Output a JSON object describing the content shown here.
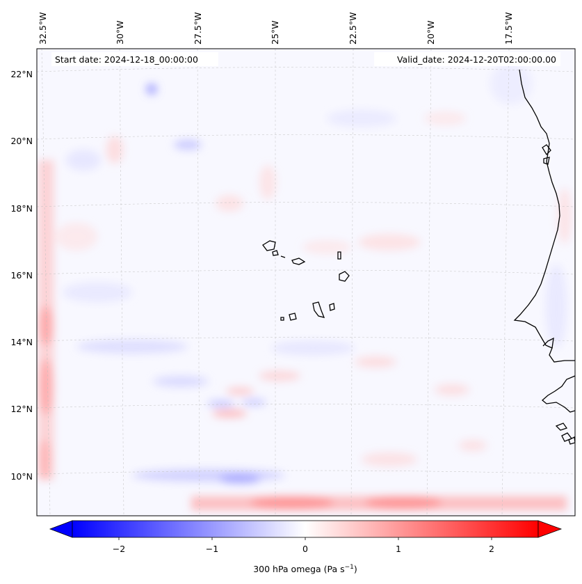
{
  "map": {
    "start_label": "Start date: 2024-12-18_00:00:00",
    "valid_label": "Valid_date: 2024-12-20T02:00:00.00",
    "lon_labels": [
      "32.5°W",
      "30°W",
      "27.5°W",
      "25°W",
      "22.5°W",
      "20°W",
      "17.5°W"
    ],
    "lat_labels": [
      "22°N",
      "20°N",
      "18°N",
      "16°N",
      "14°N",
      "12°N",
      "10°N"
    ],
    "colorbar": {
      "ticks": [
        "−2",
        "−1",
        "0",
        "1",
        "2"
      ],
      "label_main": "300 hPa omega (Pa s",
      "label_exp": "−1",
      "label_close": ")",
      "colors": {
        "negative": "#0000ff",
        "zero": "#ffffff",
        "positive": "#ff0000"
      }
    }
  },
  "chart_data": {
    "type": "heatmap",
    "variable": "300 hPa omega",
    "units": "Pa s^-1",
    "colormap": "bwr",
    "vmin": -2.6,
    "vmax": 2.6,
    "colorbar_ticks": [
      -2,
      -1,
      0,
      1,
      2
    ],
    "lon_ticks": [
      -32.5,
      -30,
      -27.5,
      -25,
      -22.5,
      -20,
      -17.5
    ],
    "lat_ticks": [
      22,
      20,
      18,
      16,
      14,
      12,
      10
    ],
    "extent": {
      "lon_min": -33,
      "lon_max": -15,
      "lat_min": 9,
      "lat_max": 22.8
    },
    "features": [
      {
        "name": "western-boundary-strip",
        "lon": -32.7,
        "lat": [
          9.5,
          20
        ],
        "value": 0.6
      },
      {
        "name": "southern-boundary-strip",
        "lon": [
          -29,
          -15.5
        ],
        "lat": 9.1,
        "value": 0.9
      },
      {
        "name": "subsidence-band-south",
        "lon": [
          -30,
          -25
        ],
        "lat": 9.7,
        "value": -0.6
      },
      {
        "name": "gravity-waves",
        "lon": [
          -27,
          -24
        ],
        "lat": 12.2,
        "value": 0.5
      }
    ]
  }
}
